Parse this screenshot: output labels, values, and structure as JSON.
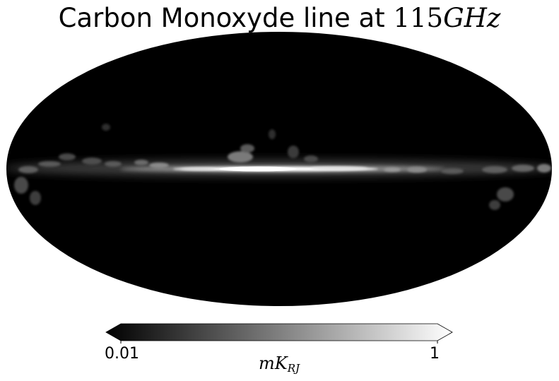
{
  "title": {
    "text": "Carbon Monoxyde line at ",
    "math": "115GHz"
  },
  "map": {
    "projection": "mollweide",
    "background_color": "#000000",
    "emission_color": "#ffffff",
    "feature": "galactic-plane CO emission band"
  },
  "colorbar": {
    "min_label": "0.01",
    "max_label": "1",
    "unit_main": "mK",
    "unit_sub": "RJ",
    "colormap": "gray",
    "min_color": "#000000",
    "max_color": "#ffffff",
    "scale": "log",
    "extend": "both"
  }
}
